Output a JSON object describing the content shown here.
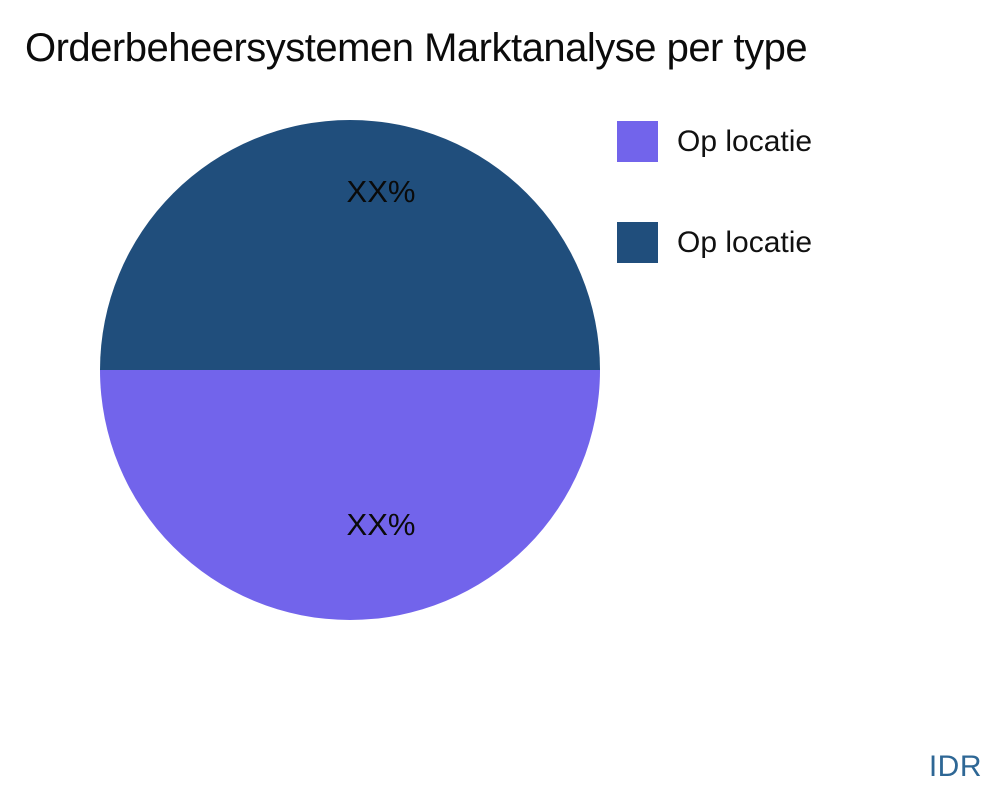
{
  "title": "Orderbeheersystemen Marktanalyse per type",
  "watermark": {
    "text": "IDR",
    "color": "#2E6795"
  },
  "chart_data": {
    "type": "pie",
    "title": "Orderbeheersystemen Marktanalyse per type",
    "start_angle_deg": 90,
    "direction": "clockwise",
    "slices": [
      {
        "label": "Op locatie",
        "value": 50,
        "display_value": "XX%",
        "color": "#7264EB",
        "position": "bottom-half"
      },
      {
        "label": "Op locatie",
        "value": 50,
        "display_value": "XX%",
        "color": "#204E7C",
        "position": "top-half"
      }
    ],
    "legend": [
      {
        "label": "Op locatie",
        "color": "#7264EB"
      },
      {
        "label": "Op locatie",
        "color": "#204E7C"
      }
    ],
    "legend_position": "right",
    "label_color": "#0a0a0a",
    "title_color": "#0b0b0b",
    "background": "#ffffff"
  }
}
